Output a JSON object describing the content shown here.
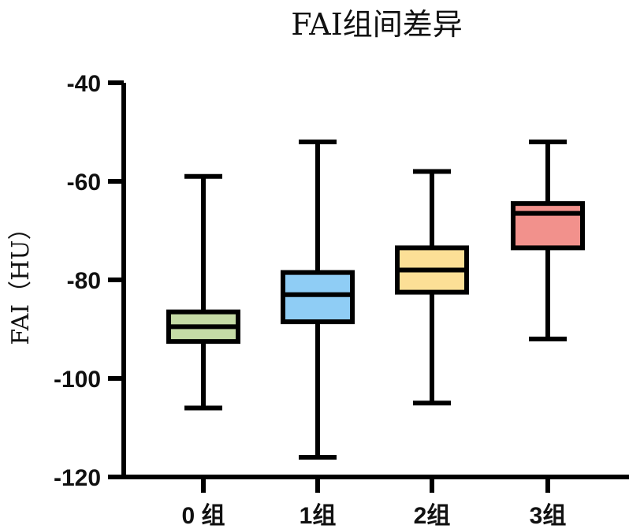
{
  "chart_data": {
    "type": "box",
    "title": "FAI组间差异",
    "ylabel": "FAI（HU）",
    "xlabel": "",
    "ylim": [
      -120,
      -40
    ],
    "yticks": [
      -40,
      -60,
      -80,
      -100,
      -120
    ],
    "ytick_labels": [
      "-40",
      "-60",
      "-80",
      "-100",
      "-120"
    ],
    "categories": [
      "0 组",
      "1组",
      "2组",
      "3组"
    ],
    "grid": false,
    "legend": "none",
    "boxes": [
      {
        "category": "0 组",
        "min": -106,
        "q1": -92.5,
        "median": -89.5,
        "q3": -86.5,
        "max": -59,
        "color": "#c5dba6"
      },
      {
        "category": "1组",
        "min": -116,
        "q1": -88.5,
        "median": -83,
        "q3": -78.5,
        "max": -52,
        "color": "#8fcdf5"
      },
      {
        "category": "2组",
        "min": -105,
        "q1": -82.5,
        "median": -78,
        "q3": -73.5,
        "max": -58,
        "color": "#fcdf96"
      },
      {
        "category": "3组",
        "min": -92,
        "q1": -73.5,
        "median": -66.5,
        "q3": -64.5,
        "max": -52,
        "color": "#f2918c"
      }
    ]
  }
}
